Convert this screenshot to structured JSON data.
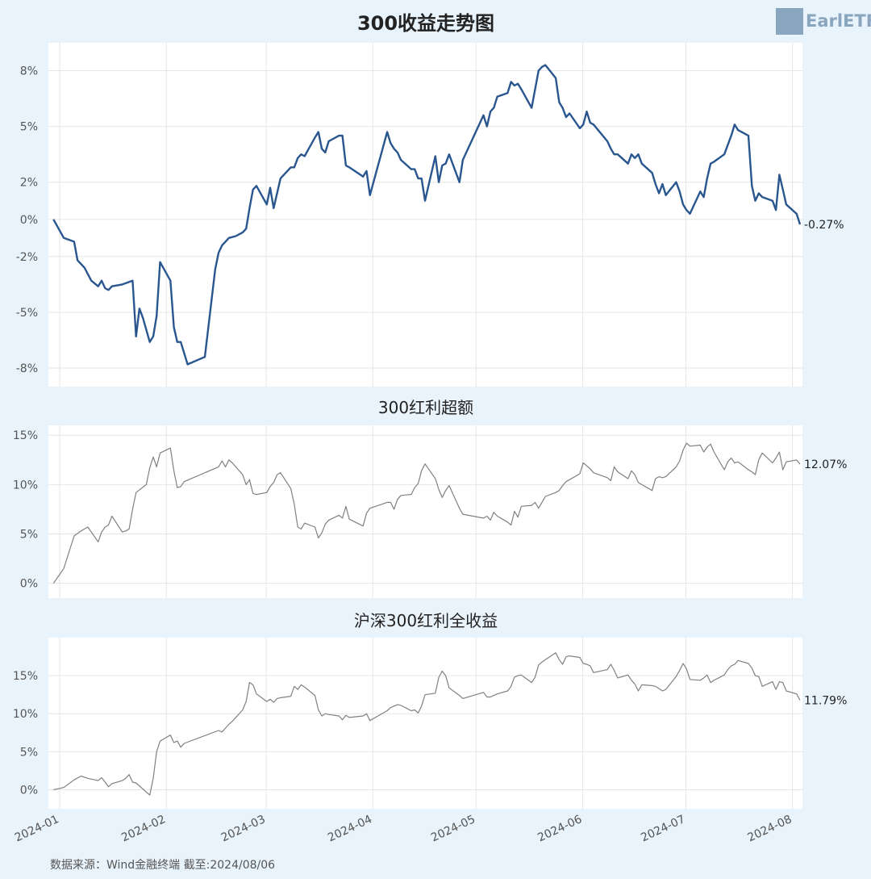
{
  "header": {
    "logo_text": "EarlETF"
  },
  "footer": {
    "source": "数据来源：Wind金融终端 截至:2024/08/06"
  },
  "x_ticks": [
    "2024-01",
    "2024-02",
    "2024-03",
    "2024-04",
    "2024-05",
    "2024-06",
    "2024-07",
    "2024-08"
  ],
  "chart_data": [
    {
      "type": "line",
      "title": "300收益走势图",
      "color": "#2a568f",
      "ylim": [
        -9,
        9.5
      ],
      "yticks": [
        -8,
        -5,
        -2,
        0,
        2,
        5,
        8
      ],
      "ytick_labels": [
        "-8%",
        "-5%",
        "-2%",
        "0%",
        "2%",
        "5%",
        "8%"
      ],
      "end_label": "-0.27%",
      "x": [
        "2024-01-02",
        "2024-01-05",
        "2024-01-08",
        "2024-01-09",
        "2024-01-11",
        "2024-01-13",
        "2024-01-15",
        "2024-01-16",
        "2024-01-17",
        "2024-01-18",
        "2024-01-19",
        "2024-01-22",
        "2024-01-25",
        "2024-01-26",
        "2024-01-27",
        "2024-01-28",
        "2024-01-30",
        "2024-01-31",
        "2024-02-01",
        "2024-02-02",
        "2024-02-05",
        "2024-02-06",
        "2024-02-07",
        "2024-02-08",
        "2024-02-10",
        "2024-02-15",
        "2024-02-18",
        "2024-02-19",
        "2024-02-20",
        "2024-02-21",
        "2024-02-22",
        "2024-02-24",
        "2024-02-26",
        "2024-02-27",
        "2024-02-28",
        "2024-02-29",
        "2024-03-01",
        "2024-03-04",
        "2024-03-05",
        "2024-03-06",
        "2024-03-08",
        "2024-03-11",
        "2024-03-12",
        "2024-03-13",
        "2024-03-14",
        "2024-03-15",
        "2024-03-18",
        "2024-03-19",
        "2024-03-20",
        "2024-03-21",
        "2024-03-22",
        "2024-03-25",
        "2024-03-26",
        "2024-03-27",
        "2024-03-28",
        "2024-04-01",
        "2024-04-02",
        "2024-04-03",
        "2024-04-08",
        "2024-04-09",
        "2024-04-10",
        "2024-04-11",
        "2024-04-12",
        "2024-04-15",
        "2024-04-16",
        "2024-04-17",
        "2024-04-18",
        "2024-04-19",
        "2024-04-22",
        "2024-04-23",
        "2024-04-24",
        "2024-04-25",
        "2024-04-26",
        "2024-04-29",
        "2024-04-30",
        "2024-05-06",
        "2024-05-07",
        "2024-05-08",
        "2024-05-09",
        "2024-05-10",
        "2024-05-13",
        "2024-05-14",
        "2024-05-15",
        "2024-05-16",
        "2024-05-17",
        "2024-05-20",
        "2024-05-21",
        "2024-05-22",
        "2024-05-23",
        "2024-05-24",
        "2024-05-27",
        "2024-05-28",
        "2024-05-29",
        "2024-05-30",
        "2024-05-31",
        "2024-06-03",
        "2024-06-04",
        "2024-06-05",
        "2024-06-06",
        "2024-06-07",
        "2024-06-11",
        "2024-06-12",
        "2024-06-13",
        "2024-06-14",
        "2024-06-17",
        "2024-06-18",
        "2024-06-19",
        "2024-06-20",
        "2024-06-21",
        "2024-06-24",
        "2024-06-25",
        "2024-06-26",
        "2024-06-27",
        "2024-06-28",
        "2024-07-01",
        "2024-07-02",
        "2024-07-03",
        "2024-07-04",
        "2024-07-05",
        "2024-07-08",
        "2024-07-09",
        "2024-07-10",
        "2024-07-11",
        "2024-07-12",
        "2024-07-15",
        "2024-07-16",
        "2024-07-17",
        "2024-07-18",
        "2024-07-19",
        "2024-07-22",
        "2024-07-23",
        "2024-07-24",
        "2024-07-25",
        "2024-07-26",
        "2024-07-29",
        "2024-07-30",
        "2024-07-31",
        "2024-08-01",
        "2024-08-02",
        "2024-08-05",
        "2024-08-06"
      ],
      "y": [
        0.0,
        -1.0,
        -1.2,
        -2.2,
        -2.6,
        -3.3,
        -3.6,
        -3.3,
        -3.7,
        -3.8,
        -3.6,
        -3.5,
        -3.3,
        -6.3,
        -4.8,
        -5.3,
        -6.6,
        -6.3,
        -5.2,
        -2.3,
        -3.3,
        -5.8,
        -6.6,
        -6.6,
        -7.8,
        -7.4,
        -2.7,
        -1.8,
        -1.4,
        -1.2,
        -1.0,
        -0.9,
        -0.7,
        -0.5,
        0.6,
        1.6,
        1.8,
        0.8,
        1.7,
        0.6,
        2.2,
        2.8,
        2.8,
        3.3,
        3.5,
        3.4,
        4.4,
        4.7,
        3.8,
        3.6,
        4.2,
        4.5,
        4.5,
        2.9,
        2.8,
        2.3,
        2.6,
        1.3,
        4.7,
        4.1,
        3.8,
        3.6,
        3.2,
        2.7,
        2.7,
        2.2,
        2.2,
        1.0,
        3.4,
        2.0,
        2.9,
        3.0,
        3.5,
        2.0,
        3.2,
        5.6,
        5.0,
        5.8,
        6.0,
        6.6,
        6.8,
        7.4,
        7.2,
        7.3,
        7.0,
        6.0,
        7.0,
        8.0,
        8.2,
        8.3,
        7.6,
        6.3,
        6.0,
        5.5,
        5.7,
        4.9,
        5.1,
        5.8,
        5.2,
        5.1,
        4.2,
        3.8,
        3.5,
        3.5,
        3.0,
        3.5,
        3.3,
        3.5,
        3.0,
        2.5,
        1.9,
        1.4,
        1.9,
        1.3,
        2.0,
        1.5,
        0.8,
        0.5,
        0.3,
        1.5,
        1.2,
        2.2,
        3.0,
        3.1,
        3.5,
        4.0,
        4.5,
        5.1,
        4.8,
        4.5,
        1.8,
        1.0,
        1.4,
        1.2,
        1.0,
        0.5,
        2.4,
        1.6,
        0.8,
        0.3,
        -0.27
      ]
    },
    {
      "type": "line",
      "title": "300红利超额",
      "color": "#808080",
      "ylim": [
        -1.5,
        16
      ],
      "yticks": [
        0,
        5,
        10,
        15
      ],
      "ytick_labels": [
        "0%",
        "5%",
        "10%",
        "15%"
      ],
      "end_label": "12.07%",
      "x": [
        "2024-01-02",
        "2024-01-05",
        "2024-01-08",
        "2024-01-10",
        "2024-01-12",
        "2024-01-15",
        "2024-01-16",
        "2024-01-17",
        "2024-01-18",
        "2024-01-19",
        "2024-01-22",
        "2024-01-23",
        "2024-01-24",
        "2024-01-25",
        "2024-01-26",
        "2024-01-29",
        "2024-01-30",
        "2024-01-31",
        "2024-02-01",
        "2024-02-02",
        "2024-02-05",
        "2024-02-06",
        "2024-02-07",
        "2024-02-08",
        "2024-02-09",
        "2024-02-19",
        "2024-02-20",
        "2024-02-21",
        "2024-02-22",
        "2024-02-23",
        "2024-02-26",
        "2024-02-27",
        "2024-02-28",
        "2024-02-29",
        "2024-03-01",
        "2024-03-04",
        "2024-03-05",
        "2024-03-06",
        "2024-03-07",
        "2024-03-08",
        "2024-03-11",
        "2024-03-12",
        "2024-03-13",
        "2024-03-14",
        "2024-03-15",
        "2024-03-18",
        "2024-03-19",
        "2024-03-20",
        "2024-03-21",
        "2024-03-22",
        "2024-03-25",
        "2024-03-26",
        "2024-03-27",
        "2024-03-28",
        "2024-04-01",
        "2024-04-02",
        "2024-04-03",
        "2024-04-08",
        "2024-04-09",
        "2024-04-10",
        "2024-04-11",
        "2024-04-12",
        "2024-04-15",
        "2024-04-16",
        "2024-04-17",
        "2024-04-18",
        "2024-04-19",
        "2024-04-22",
        "2024-04-23",
        "2024-04-24",
        "2024-04-25",
        "2024-04-26",
        "2024-04-29",
        "2024-04-30",
        "2024-05-06",
        "2024-05-07",
        "2024-05-08",
        "2024-05-09",
        "2024-05-10",
        "2024-05-13",
        "2024-05-14",
        "2024-05-15",
        "2024-05-16",
        "2024-05-17",
        "2024-05-20",
        "2024-05-21",
        "2024-05-22",
        "2024-05-23",
        "2024-05-24",
        "2024-05-27",
        "2024-05-28",
        "2024-05-29",
        "2024-05-30",
        "2024-05-31",
        "2024-06-03",
        "2024-06-04",
        "2024-06-05",
        "2024-06-06",
        "2024-06-07",
        "2024-06-11",
        "2024-06-12",
        "2024-06-13",
        "2024-06-14",
        "2024-06-17",
        "2024-06-18",
        "2024-06-19",
        "2024-06-20",
        "2024-06-21",
        "2024-06-24",
        "2024-06-25",
        "2024-06-26",
        "2024-06-27",
        "2024-06-28",
        "2024-07-01",
        "2024-07-02",
        "2024-07-03",
        "2024-07-04",
        "2024-07-05",
        "2024-07-08",
        "2024-07-09",
        "2024-07-10",
        "2024-07-11",
        "2024-07-12",
        "2024-07-15",
        "2024-07-16",
        "2024-07-17",
        "2024-07-18",
        "2024-07-19",
        "2024-07-22",
        "2024-07-23",
        "2024-07-24",
        "2024-07-25",
        "2024-07-26",
        "2024-07-29",
        "2024-07-30",
        "2024-07-31",
        "2024-08-01",
        "2024-08-02",
        "2024-08-05",
        "2024-08-06"
      ],
      "y": [
        0.0,
        1.5,
        4.8,
        5.3,
        5.7,
        4.2,
        5.2,
        5.7,
        5.9,
        6.8,
        5.2,
        5.3,
        5.5,
        7.5,
        9.2,
        10.0,
        11.7,
        12.8,
        11.8,
        13.2,
        13.7,
        11.4,
        9.7,
        9.8,
        10.3,
        11.8,
        12.4,
        11.8,
        12.5,
        12.2,
        11.0,
        10.0,
        10.5,
        9.1,
        9.0,
        9.2,
        9.8,
        10.2,
        11.0,
        11.2,
        9.6,
        8.0,
        5.7,
        5.5,
        6.1,
        5.7,
        4.6,
        5.1,
        6.0,
        6.4,
        6.9,
        6.6,
        7.8,
        6.5,
        5.8,
        7.1,
        7.6,
        8.2,
        8.2,
        7.5,
        8.5,
        8.9,
        9.0,
        9.7,
        10.1,
        11.4,
        12.1,
        10.6,
        9.5,
        8.7,
        9.4,
        9.9,
        7.6,
        7.0,
        6.6,
        6.8,
        6.4,
        7.2,
        6.8,
        6.2,
        5.9,
        7.3,
        6.7,
        7.8,
        7.9,
        8.2,
        7.6,
        8.2,
        8.8,
        9.2,
        9.4,
        9.9,
        10.3,
        10.5,
        11.1,
        12.2,
        11.9,
        11.6,
        11.2,
        10.7,
        10.4,
        11.8,
        11.3,
        10.6,
        11.4,
        11.0,
        10.2,
        10.0,
        9.4,
        10.6,
        10.8,
        10.7,
        10.8,
        11.8,
        12.4,
        13.5,
        14.2,
        13.9,
        14.0,
        13.3,
        13.8,
        14.1,
        13.3,
        11.5,
        12.3,
        12.7,
        12.2,
        12.3,
        11.5,
        11.3,
        11.0,
        12.5,
        13.2,
        12.2,
        12.7,
        13.3,
        11.5,
        12.3,
        12.5,
        12.07
      ]
    },
    {
      "type": "line",
      "title": "沪深300红利全收益",
      "color": "#808080",
      "ylim": [
        -2.5,
        20
      ],
      "yticks": [
        0,
        5,
        10,
        15
      ],
      "ytick_labels": [
        "0%",
        "5%",
        "10%",
        "15%"
      ],
      "end_label": "11.79%",
      "x": [
        "2024-01-02",
        "2024-01-05",
        "2024-01-08",
        "2024-01-10",
        "2024-01-12",
        "2024-01-15",
        "2024-01-16",
        "2024-01-17",
        "2024-01-18",
        "2024-01-19",
        "2024-01-22",
        "2024-01-23",
        "2024-01-24",
        "2024-01-25",
        "2024-01-26",
        "2024-01-29",
        "2024-01-30",
        "2024-01-31",
        "2024-02-01",
        "2024-02-02",
        "2024-02-05",
        "2024-02-06",
        "2024-02-07",
        "2024-02-08",
        "2024-02-09",
        "2024-02-19",
        "2024-02-20",
        "2024-02-21",
        "2024-02-22",
        "2024-02-23",
        "2024-02-26",
        "2024-02-27",
        "2024-02-28",
        "2024-02-29",
        "2024-03-01",
        "2024-03-04",
        "2024-03-05",
        "2024-03-06",
        "2024-03-07",
        "2024-03-08",
        "2024-03-11",
        "2024-03-12",
        "2024-03-13",
        "2024-03-14",
        "2024-03-15",
        "2024-03-18",
        "2024-03-19",
        "2024-03-20",
        "2024-03-21",
        "2024-03-22",
        "2024-03-25",
        "2024-03-26",
        "2024-03-27",
        "2024-03-28",
        "2024-04-01",
        "2024-04-02",
        "2024-04-03",
        "2024-04-08",
        "2024-04-09",
        "2024-04-10",
        "2024-04-11",
        "2024-04-12",
        "2024-04-15",
        "2024-04-16",
        "2024-04-17",
        "2024-04-18",
        "2024-04-19",
        "2024-04-22",
        "2024-04-23",
        "2024-04-24",
        "2024-04-25",
        "2024-04-26",
        "2024-04-29",
        "2024-04-30",
        "2024-05-06",
        "2024-05-07",
        "2024-05-08",
        "2024-05-09",
        "2024-05-10",
        "2024-05-13",
        "2024-05-14",
        "2024-05-15",
        "2024-05-16",
        "2024-05-17",
        "2024-05-20",
        "2024-05-21",
        "2024-05-22",
        "2024-05-23",
        "2024-05-24",
        "2024-05-27",
        "2024-05-28",
        "2024-05-29",
        "2024-05-30",
        "2024-05-31",
        "2024-06-03",
        "2024-06-04",
        "2024-06-05",
        "2024-06-06",
        "2024-06-07",
        "2024-06-11",
        "2024-06-12",
        "2024-06-13",
        "2024-06-14",
        "2024-06-17",
        "2024-06-18",
        "2024-06-19",
        "2024-06-20",
        "2024-06-21",
        "2024-06-24",
        "2024-06-25",
        "2024-06-26",
        "2024-06-27",
        "2024-06-28",
        "2024-07-01",
        "2024-07-02",
        "2024-07-03",
        "2024-07-04",
        "2024-07-05",
        "2024-07-08",
        "2024-07-09",
        "2024-07-10",
        "2024-07-11",
        "2024-07-12",
        "2024-07-15",
        "2024-07-16",
        "2024-07-17",
        "2024-07-18",
        "2024-07-19",
        "2024-07-22",
        "2024-07-23",
        "2024-07-24",
        "2024-07-25",
        "2024-07-26",
        "2024-07-29",
        "2024-07-30",
        "2024-07-31",
        "2024-08-01",
        "2024-08-02",
        "2024-08-05",
        "2024-08-06"
      ],
      "y": [
        0.0,
        0.3,
        1.3,
        1.8,
        1.5,
        1.2,
        1.6,
        1.0,
        0.4,
        0.8,
        1.2,
        1.5,
        2.0,
        1.0,
        0.9,
        -0.3,
        -0.7,
        1.5,
        5.0,
        6.4,
        7.2,
        6.2,
        6.4,
        5.6,
        6.1,
        7.8,
        7.6,
        8.1,
        8.6,
        9.0,
        10.5,
        11.6,
        14.1,
        13.8,
        12.6,
        11.6,
        11.9,
        11.5,
        12.0,
        12.1,
        12.3,
        13.6,
        13.2,
        13.8,
        13.5,
        12.4,
        10.5,
        9.7,
        10.0,
        9.9,
        9.7,
        9.2,
        9.8,
        9.5,
        9.7,
        10.0,
        9.1,
        10.4,
        10.8,
        11.0,
        11.2,
        11.1,
        10.4,
        10.5,
        10.1,
        11.0,
        12.5,
        12.7,
        14.8,
        15.6,
        15.0,
        13.4,
        12.4,
        12.0,
        12.8,
        12.2,
        12.2,
        12.4,
        12.6,
        13.0,
        13.6,
        14.8,
        15.0,
        15.1,
        14.1,
        14.8,
        16.4,
        16.8,
        17.1,
        18.0,
        17.1,
        16.5,
        17.5,
        17.6,
        17.4,
        16.6,
        16.5,
        16.3,
        15.4,
        15.8,
        16.5,
        15.7,
        14.7,
        15.1,
        14.4,
        13.9,
        13.0,
        13.8,
        13.7,
        13.6,
        13.3,
        13.0,
        13.2,
        14.9,
        15.7,
        16.6,
        15.9,
        14.5,
        14.4,
        14.7,
        15.1,
        14.1,
        14.4,
        15.1,
        15.8,
        16.3,
        16.5,
        17.0,
        16.6,
        16.0,
        15.0,
        14.9,
        13.6,
        14.2,
        13.2,
        14.2,
        14.1,
        13.0,
        12.6,
        11.79
      ]
    }
  ]
}
